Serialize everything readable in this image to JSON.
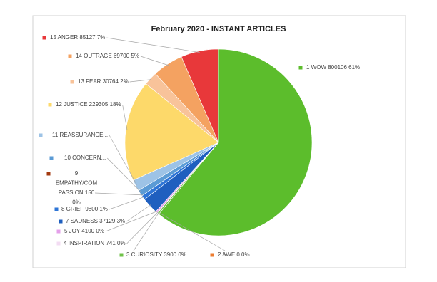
{
  "chart_data": {
    "type": "pie",
    "title": "February 2020 - INSTANT ARTICLES",
    "categories": [
      "1 WOW 800106 61%",
      "2 AWE 0 0%",
      "3 CURIOSITY 3900 0%",
      "4 INSPIRATION 741 0%",
      "5 JOY 4100 0%",
      "7 SADNESS 37129 3%",
      "8 GRIEF 9800 1%",
      "9\nEMPATHY/COM\nPASSION 150\n0%",
      "10 CONCERN...",
      "11 REASSURANCE...",
      "12 JUSTICE 229305 18%",
      "13 FEAR 30764 2%",
      "14 OUTRAGE 69700 5%",
      "15 ANGER 85127 7%"
    ],
    "values": [
      800106,
      0,
      3900,
      741,
      4100,
      37129,
      9800,
      150,
      14000,
      26000,
      229305,
      30764,
      69700,
      85127
    ],
    "colors": [
      "#5cbd2c",
      "#ed7d31",
      "#70c24a",
      "#f3dcf3",
      "#e4a0ea",
      "#1f5fbf",
      "#2e75d6",
      "#a33a10",
      "#5b9bd5",
      "#9dc3e6",
      "#fdd96a",
      "#f8c39a",
      "#f4a261",
      "#e8383a"
    ]
  }
}
